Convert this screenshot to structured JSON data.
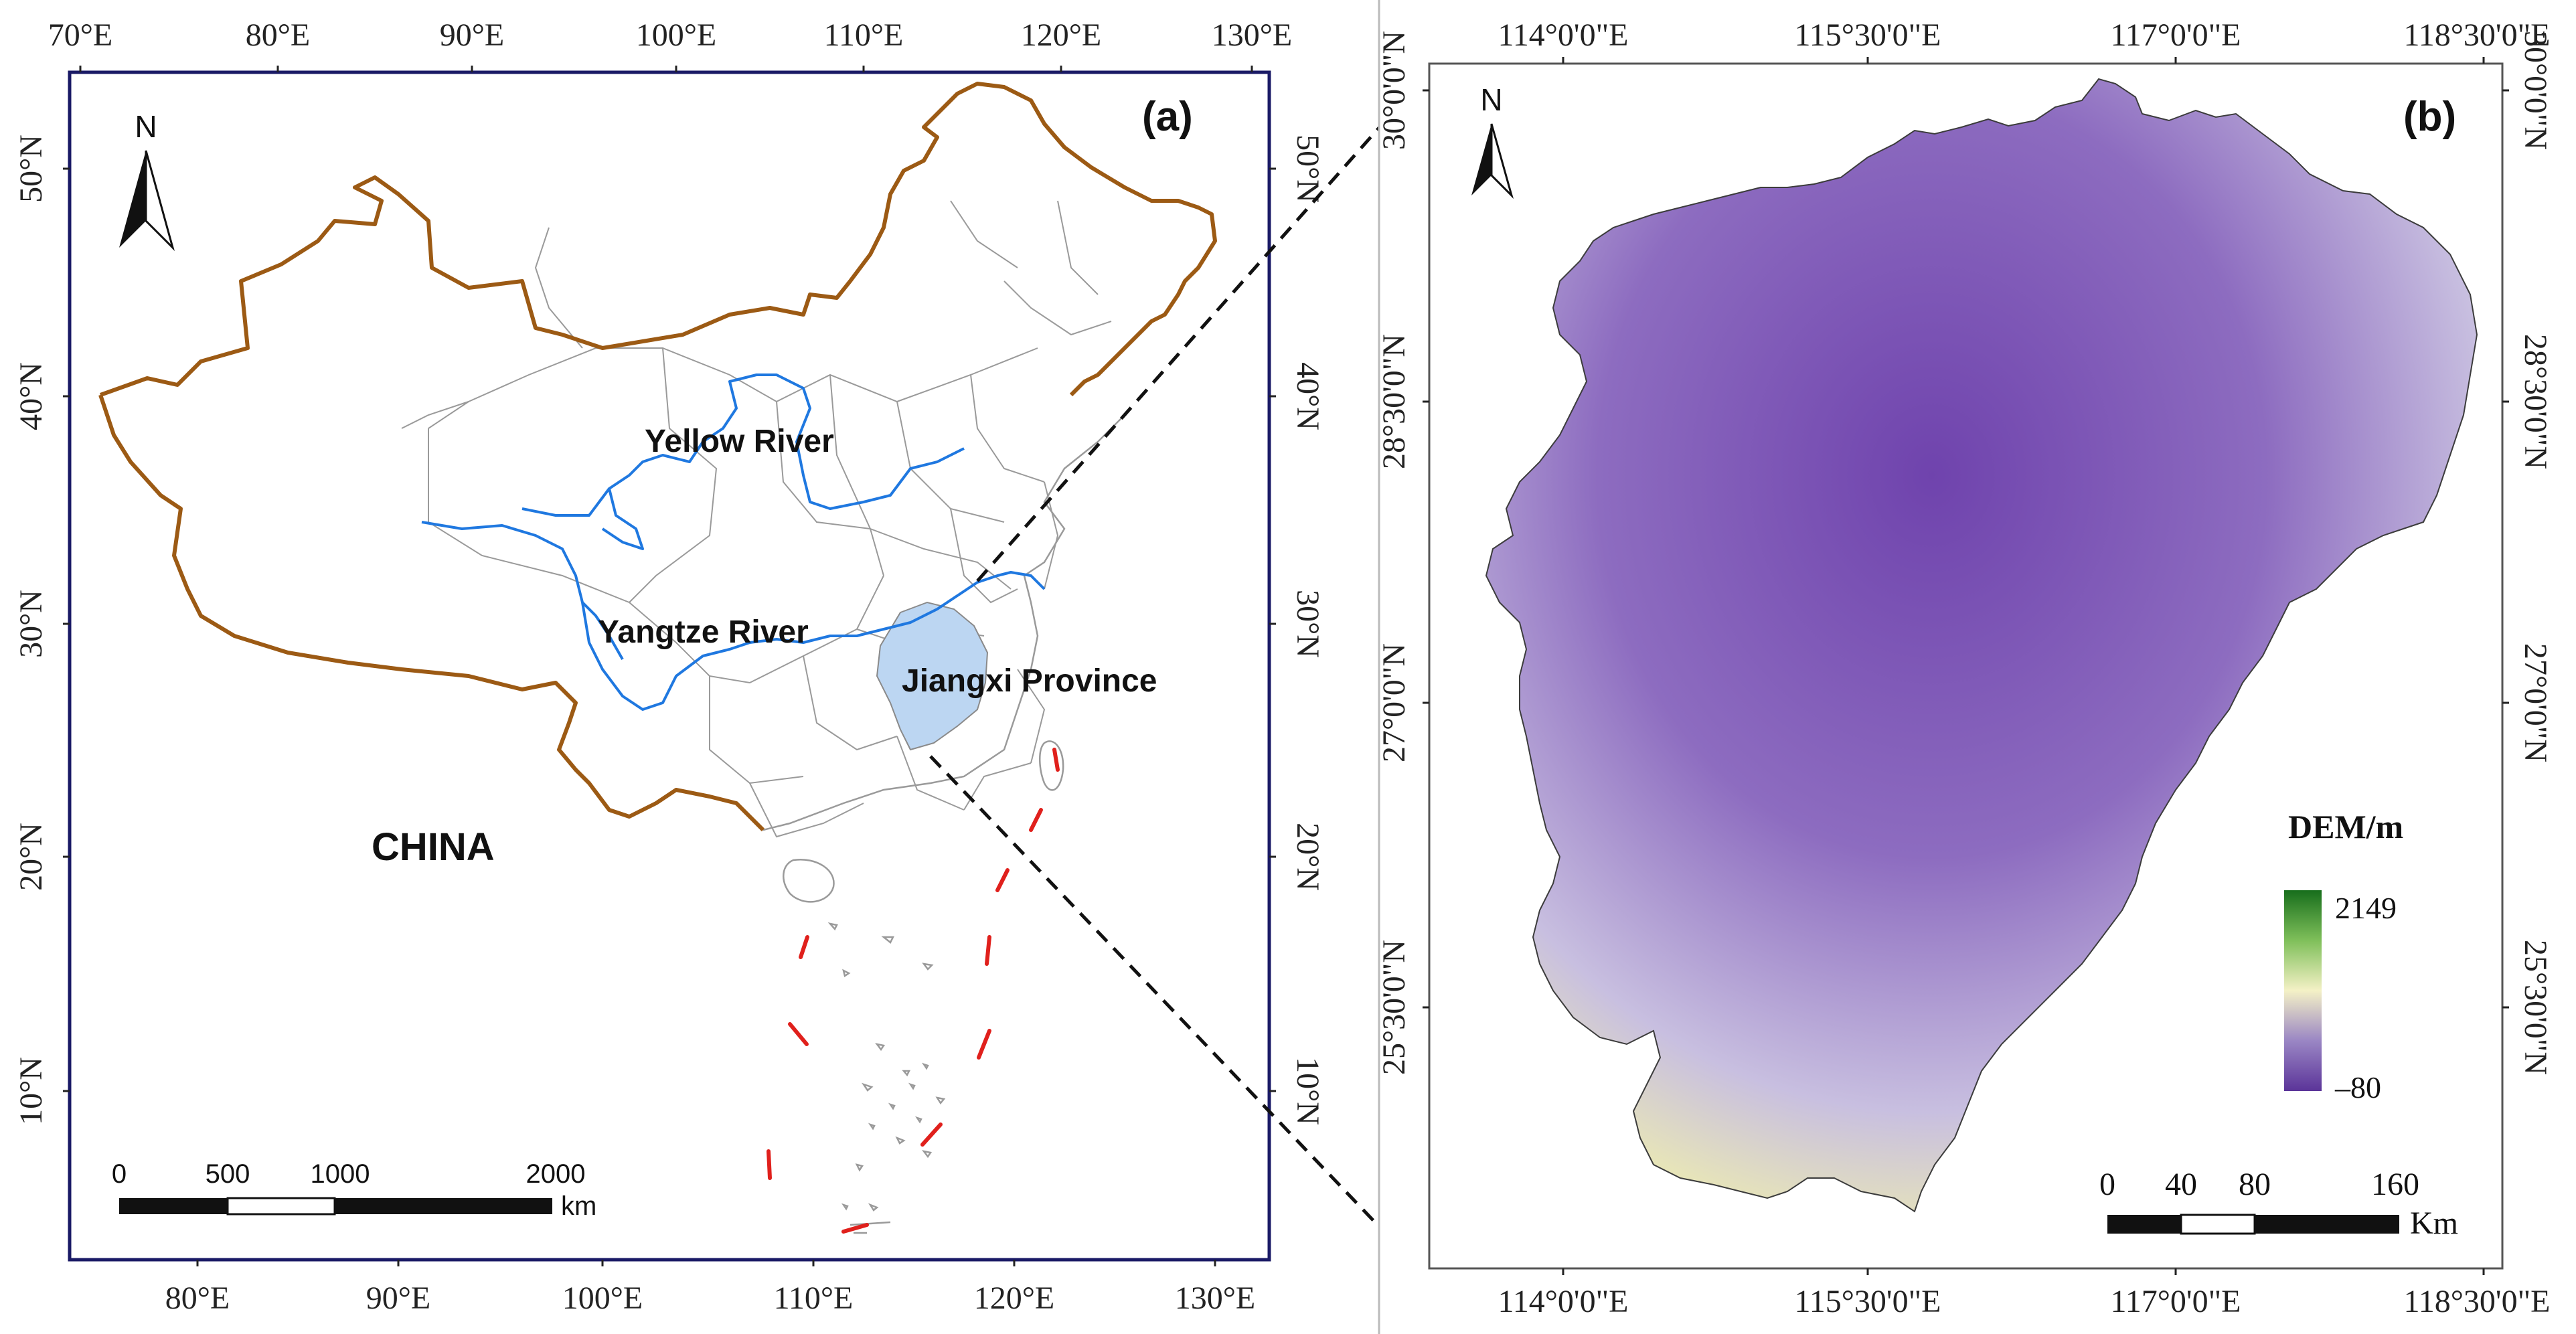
{
  "panel_a": {
    "tag": "(a)",
    "top_ticks": [
      "70°E",
      "80°E",
      "90°E",
      "100°E",
      "110°E",
      "120°E",
      "130°E"
    ],
    "bottom_ticks": [
      "80°E",
      "90°E",
      "100°E",
      "110°E",
      "120°E",
      "130°E"
    ],
    "left_ticks": [
      "50°N",
      "40°N",
      "30°N",
      "20°N",
      "10°N"
    ],
    "right_ticks": [
      "50°N",
      "40°N",
      "30°N",
      "20°N",
      "10°N"
    ],
    "north_label": "N",
    "labels": {
      "yellow_river": "Yellow River",
      "yangtze_river": "Yangtze River",
      "jiangxi": "Jiangxi Province",
      "china": "CHINA"
    },
    "scalebar": {
      "ticks": [
        "0",
        "500",
        "1000",
        "2000"
      ],
      "unit": "km"
    }
  },
  "panel_b": {
    "tag": "(b)",
    "top_ticks": [
      "114°0'0\"E",
      "115°30'0\"E",
      "117°0'0\"E",
      "118°30'0\"E"
    ],
    "bottom_ticks": [
      "114°0'0\"E",
      "115°30'0\"E",
      "117°0'0\"E",
      "118°30'0\"E"
    ],
    "left_ticks": [
      "30°0'0\"N",
      "28°30'0\"N",
      "27°0'0\"N",
      "25°30'0\"N"
    ],
    "right_ticks": [
      "30°0'0\"N",
      "28°30'0\"N",
      "27°0'0\"N",
      "25°30'0\"N"
    ],
    "north_label": "N",
    "legend": {
      "title": "DEM/m",
      "max": "2149",
      "min": "–80"
    },
    "scalebar": {
      "ticks": [
        "0",
        "40",
        "80",
        "160"
      ],
      "unit": "Km"
    }
  },
  "colors": {
    "border": "#1a1a66",
    "china_border": "#9c5a14",
    "river": "#1f78e0",
    "jiangxi_fill": "#bcd6f2",
    "nine_dash": "#e0201c",
    "dem_high": "#1f7a1f",
    "dem_mid": "#f2f0c0",
    "dem_low": "#6b3fa8"
  }
}
